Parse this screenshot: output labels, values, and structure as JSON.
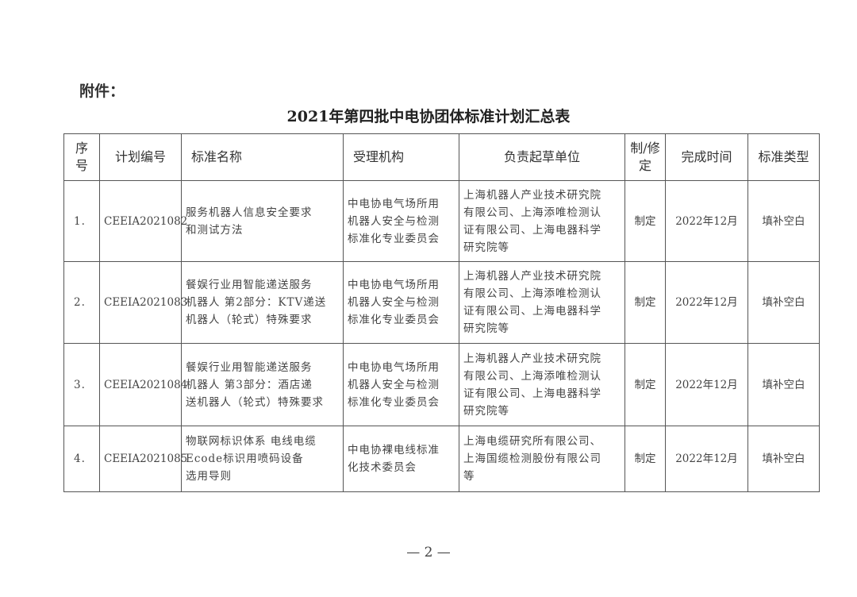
{
  "attachment_label": "附件：",
  "title": "2021年第四批中电协团体标准计划汇总表",
  "headers": [
    "序\n号",
    "计划编号",
    "标准名称",
    "受理机构",
    "负责起草单位",
    "制/修\n定",
    "完成时间",
    "标准类型"
  ],
  "rows": [
    {
      "no": "1.",
      "code": "CEEIA2021082",
      "name": "服务机器人信息安全要求\n和测试方法",
      "org": "中电协电气场所用\n机器人安全与检测\n标准化专业委员会",
      "drafter": "上海机器人产业技术研究院\n有限公司、上海添唯检测认\n证有限公司、上海电器科学\n研究院等",
      "type": "制定",
      "date": "2022年12月",
      "category": "填补空白"
    },
    {
      "no": "2.",
      "code": "CEEIA2021083",
      "name": "餐娱行业用智能递送服务\n机器人 第2部分：KTV递送\n机器人（轮式）特殊要求",
      "org": "中电协电气场所用\n机器人安全与检测\n标准化专业委员会",
      "drafter": "上海机器人产业技术研究院\n有限公司、上海添唯检测认\n证有限公司、上海电器科学\n研究院等",
      "type": "制定",
      "date": "2022年12月",
      "category": "填补空白"
    },
    {
      "no": "3.",
      "code": "CEEIA2021084",
      "name": "餐娱行业用智能递送服务\n机器人 第3部分：酒店递\n送机器人（轮式）特殊要求",
      "org": "中电协电气场所用\n机器人安全与检测\n标准化专业委员会",
      "drafter": "上海机器人产业技术研究院\n有限公司、上海添唯检测认\n证有限公司、上海电器科学\n研究院等",
      "type": "制定",
      "date": "2022年12月",
      "category": "填补空白"
    },
    {
      "no": "4.",
      "code": "CEEIA2021085",
      "name": "物联网标识体系 电线电缆\nEcode标识用喷码设备\n选用导则",
      "org": "中电协裸电线标准\n化技术委员会",
      "drafter": "上海电缆研究所有限公司、\n上海国缆检测股份有限公司\n等",
      "type": "制定",
      "date": "2022年12月",
      "category": "填补空白"
    }
  ],
  "page_number": "— 2 —"
}
